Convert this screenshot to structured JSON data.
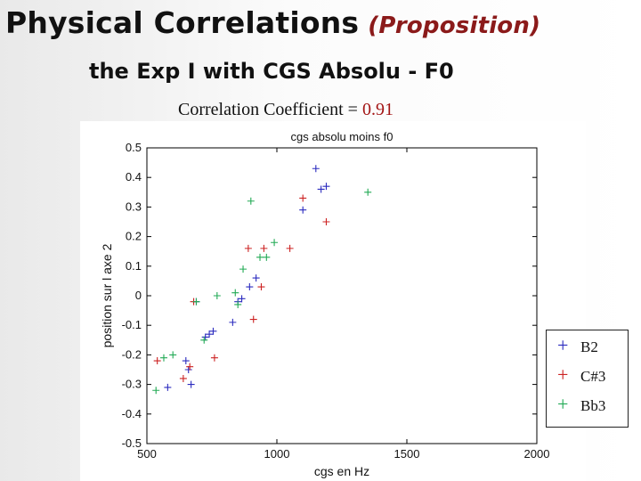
{
  "header": {
    "title": "Physical Correlations",
    "proposition": "(Proposition)",
    "subtitle": "the Exp I with CGS Absolu - F0",
    "correlation_label": "Correlation  Coefficient = ",
    "correlation_value": "0.91"
  },
  "chart_data": {
    "type": "scatter",
    "title": "cgs absolu moins f0",
    "xlabel": "cgs en Hz",
    "ylabel": "position sur l axe 2",
    "xlim": [
      500,
      2000
    ],
    "ylim": [
      -0.5,
      0.5
    ],
    "xticks": [
      500,
      1000,
      1500,
      2000
    ],
    "yticks": [
      0.5,
      0.4,
      0.3,
      0.2,
      0.1,
      0,
      -0.1,
      -0.2,
      -0.3,
      -0.4,
      -0.5
    ],
    "grid": false,
    "marker": "+",
    "legend_position": "bottom-right",
    "series": [
      {
        "name": "B2",
        "color": "#2b2bbf",
        "points": [
          [
            580,
            -0.31
          ],
          [
            650,
            -0.22
          ],
          [
            660,
            -0.25
          ],
          [
            670,
            -0.3
          ],
          [
            690,
            -0.02
          ],
          [
            725,
            -0.14
          ],
          [
            740,
            -0.13
          ],
          [
            755,
            -0.12
          ],
          [
            830,
            -0.09
          ],
          [
            850,
            -0.02
          ],
          [
            865,
            -0.01
          ],
          [
            895,
            0.03
          ],
          [
            920,
            0.06
          ],
          [
            1100,
            0.29
          ],
          [
            1150,
            0.43
          ],
          [
            1170,
            0.36
          ],
          [
            1190,
            0.37
          ]
        ]
      },
      {
        "name": "C#3",
        "color": "#cc2222",
        "points": [
          [
            540,
            -0.22
          ],
          [
            640,
            -0.28
          ],
          [
            665,
            -0.24
          ],
          [
            680,
            -0.02
          ],
          [
            760,
            -0.21
          ],
          [
            890,
            0.16
          ],
          [
            910,
            -0.08
          ],
          [
            940,
            0.03
          ],
          [
            950,
            0.16
          ],
          [
            1050,
            0.16
          ],
          [
            1100,
            0.33
          ],
          [
            1190,
            0.25
          ]
        ]
      },
      {
        "name": "Bb3",
        "color": "#22aa55",
        "points": [
          [
            535,
            -0.32
          ],
          [
            565,
            -0.21
          ],
          [
            600,
            -0.2
          ],
          [
            690,
            -0.02
          ],
          [
            720,
            -0.15
          ],
          [
            770,
            0.0
          ],
          [
            840,
            0.01
          ],
          [
            850,
            -0.03
          ],
          [
            870,
            0.09
          ],
          [
            900,
            0.32
          ],
          [
            935,
            0.13
          ],
          [
            960,
            0.13
          ],
          [
            990,
            0.18
          ],
          [
            1350,
            0.35
          ]
        ]
      }
    ]
  }
}
